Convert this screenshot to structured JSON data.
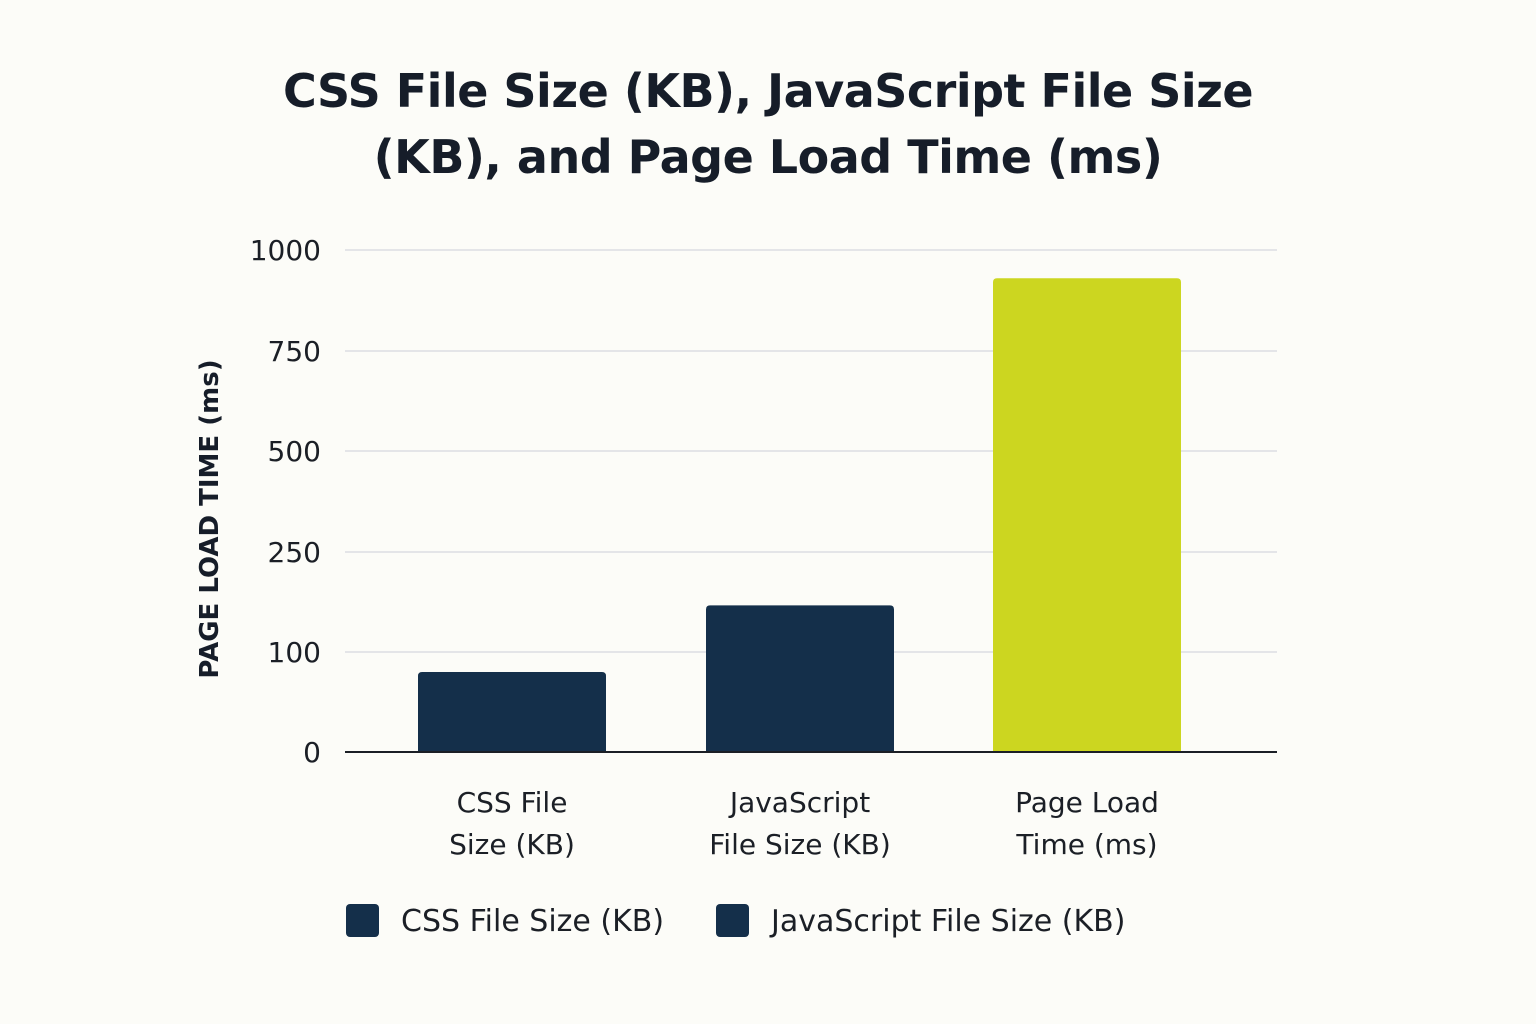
{
  "chart_data": {
    "type": "bar",
    "title_lines": [
      "CSS File Size (KB), JavaScript File Size",
      "(KB), and Page Load Time (ms)"
    ],
    "ylabel": "PAGE LOAD TIME (ms)",
    "xlabel": "",
    "categories": [
      {
        "lines": [
          "CSS File",
          "Size (KB)"
        ]
      },
      {
        "lines": [
          "JavaScript",
          "File Size (KB)"
        ]
      },
      {
        "lines": [
          "Page Load",
          "Time (ms)"
        ]
      }
    ],
    "values": [
      80,
      170,
      930
    ],
    "bar_colors": [
      "#142f4a",
      "#142f4a",
      "#ccd620"
    ],
    "yticks": [
      {
        "label": "0",
        "value": 0
      },
      {
        "label": "100",
        "value": 100
      },
      {
        "label": "250",
        "value": 250
      },
      {
        "label": "500",
        "value": 500
      },
      {
        "label": "750",
        "value": 750
      },
      {
        "label": "1000",
        "value": 1000
      }
    ],
    "ylim": [
      0,
      1000
    ],
    "grid": true,
    "legend": {
      "placement": "bottom",
      "items": [
        {
          "label": "CSS File Size (KB)",
          "color": "#142f4a"
        },
        {
          "label": "JavaScript File Size (KB)",
          "color": "#142f4a"
        }
      ]
    }
  }
}
